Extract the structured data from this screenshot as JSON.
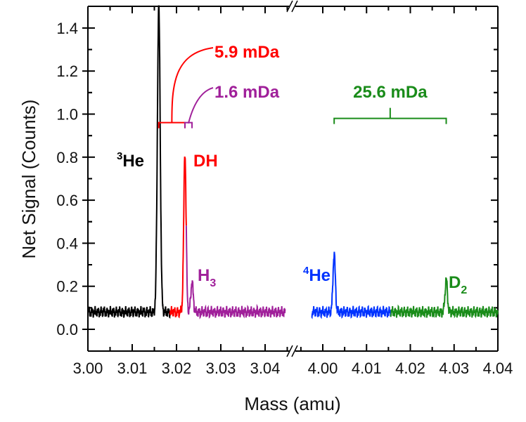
{
  "chart_data": {
    "type": "line",
    "title": "",
    "xlabel": "Mass (amu)",
    "ylabel": "Net Signal (Counts)",
    "ylim": [
      -0.1,
      1.5
    ],
    "x_broken_axis": true,
    "x_segments": [
      {
        "range": [
          3.0,
          3.0455
        ],
        "ticks": [
          "3.00",
          "3.01",
          "3.02",
          "3.03",
          "3.04"
        ]
      },
      {
        "range": [
          3.995,
          4.04
        ],
        "ticks": [
          "4.00",
          "4.01",
          "4.02",
          "4.03",
          "4.04"
        ]
      }
    ],
    "yticks": [
      "0.0",
      "0.2",
      "0.4",
      "0.6",
      "0.8",
      "1.0",
      "1.2",
      "1.4"
    ],
    "grid": false,
    "baseline": 0.08,
    "series": [
      {
        "color": "#000000",
        "segment": 0,
        "x_range": [
          3.0,
          3.0185
        ],
        "peak": {
          "x": 3.016,
          "y": 1.5,
          "label": "He",
          "sup": "3",
          "sub": ""
        }
      },
      {
        "color": "#ff0000",
        "segment": 0,
        "x_range": [
          3.0185,
          3.0222
        ],
        "peak": {
          "x": 3.0219,
          "y": 0.82,
          "label": "DH",
          "sup": "",
          "sub": ""
        }
      },
      {
        "color": "#a0209a",
        "segment": 0,
        "x_range": [
          3.0222,
          3.0445
        ],
        "peak": {
          "x": 3.0235,
          "y": 0.22,
          "label": "H",
          "sup": "",
          "sub": "3"
        }
      },
      {
        "color": "#0033ff",
        "segment": 1,
        "x_range": [
          3.9975,
          4.0155
        ],
        "peak": {
          "x": 4.0026,
          "y": 0.35,
          "label": "He",
          "sup": "4",
          "sub": ""
        }
      },
      {
        "color": "#1a8c1a",
        "segment": 1,
        "x_range": [
          4.0155,
          4.04
        ],
        "peak": {
          "x": 4.0282,
          "y": 0.23,
          "label": "D",
          "sup": "",
          "sub": "2"
        }
      }
    ],
    "annotations": [
      {
        "text": "5.9 mDa",
        "color": "#ff0000",
        "from": 3.016,
        "to": 3.0219,
        "y": 0.98
      },
      {
        "text": "1.6 mDa",
        "color": "#a0209a",
        "from": 3.0219,
        "to": 3.0235,
        "y": 0.98
      },
      {
        "text": "25.6 mDa",
        "color": "#1a8c1a",
        "from": 4.0026,
        "to": 4.0282,
        "y": 0.98
      }
    ]
  }
}
